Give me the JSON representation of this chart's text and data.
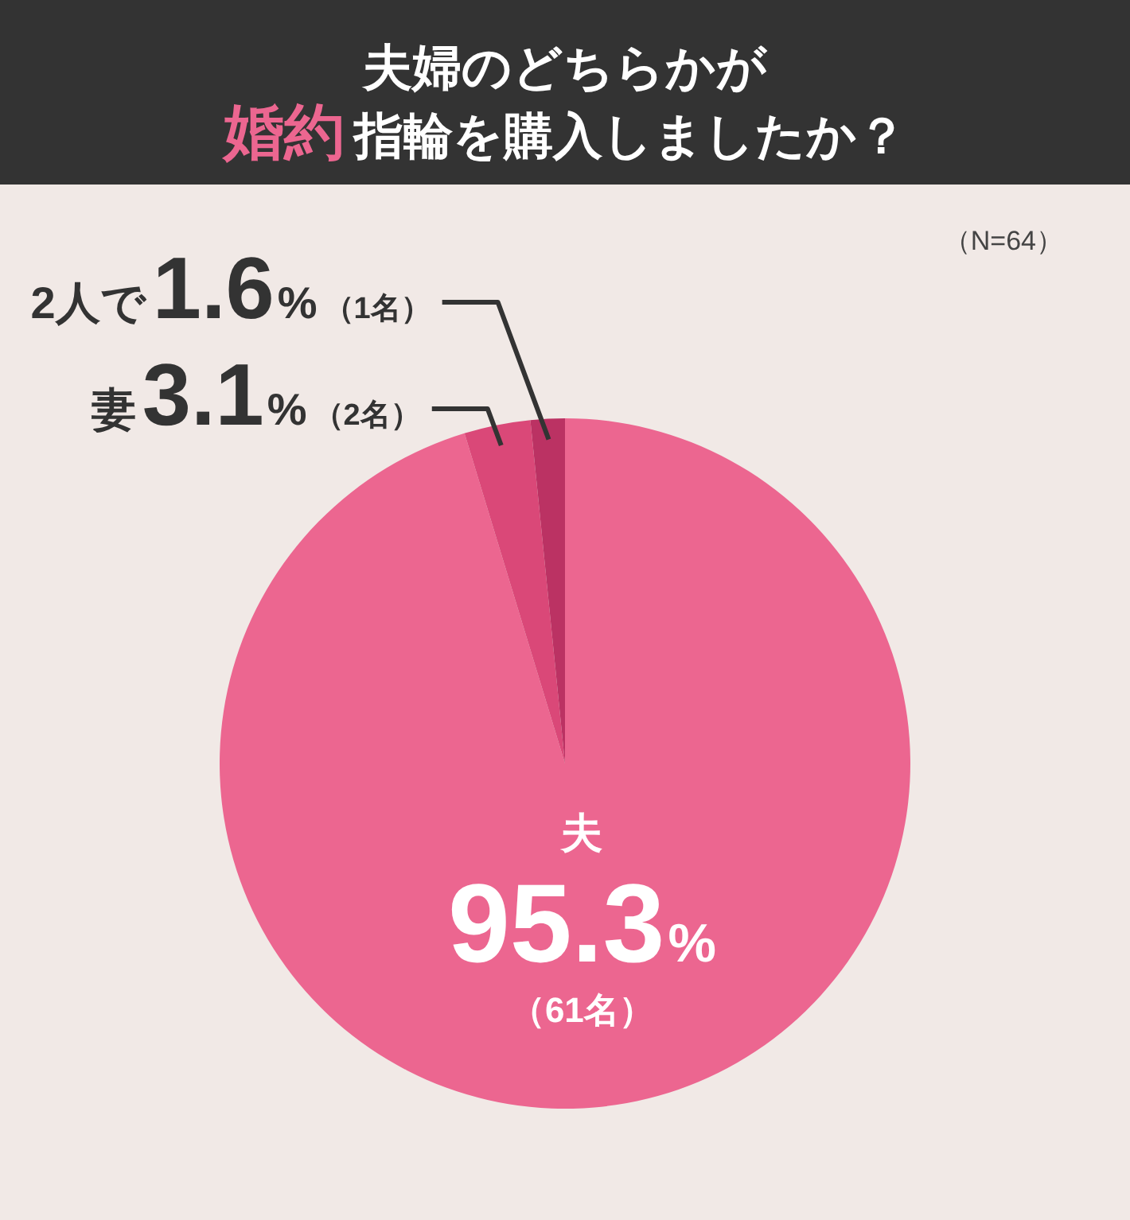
{
  "chart_data": {
    "type": "pie",
    "title": "夫婦のどちらかが",
    "subtitle": "婚約指輪を購入しましたか？",
    "categories": [
      "夫",
      "妻",
      "2人で"
    ],
    "values": [
      95.3,
      3.1,
      1.6
    ],
    "colors": [
      "#ec6690",
      "#da4878",
      "#bb3263"
    ],
    "value_labels": [
      "95.3%（61名）",
      "3.1%（2名）",
      "1.6%（1名）"
    ],
    "annotations": [
      "（N=64）"
    ]
  }
}
